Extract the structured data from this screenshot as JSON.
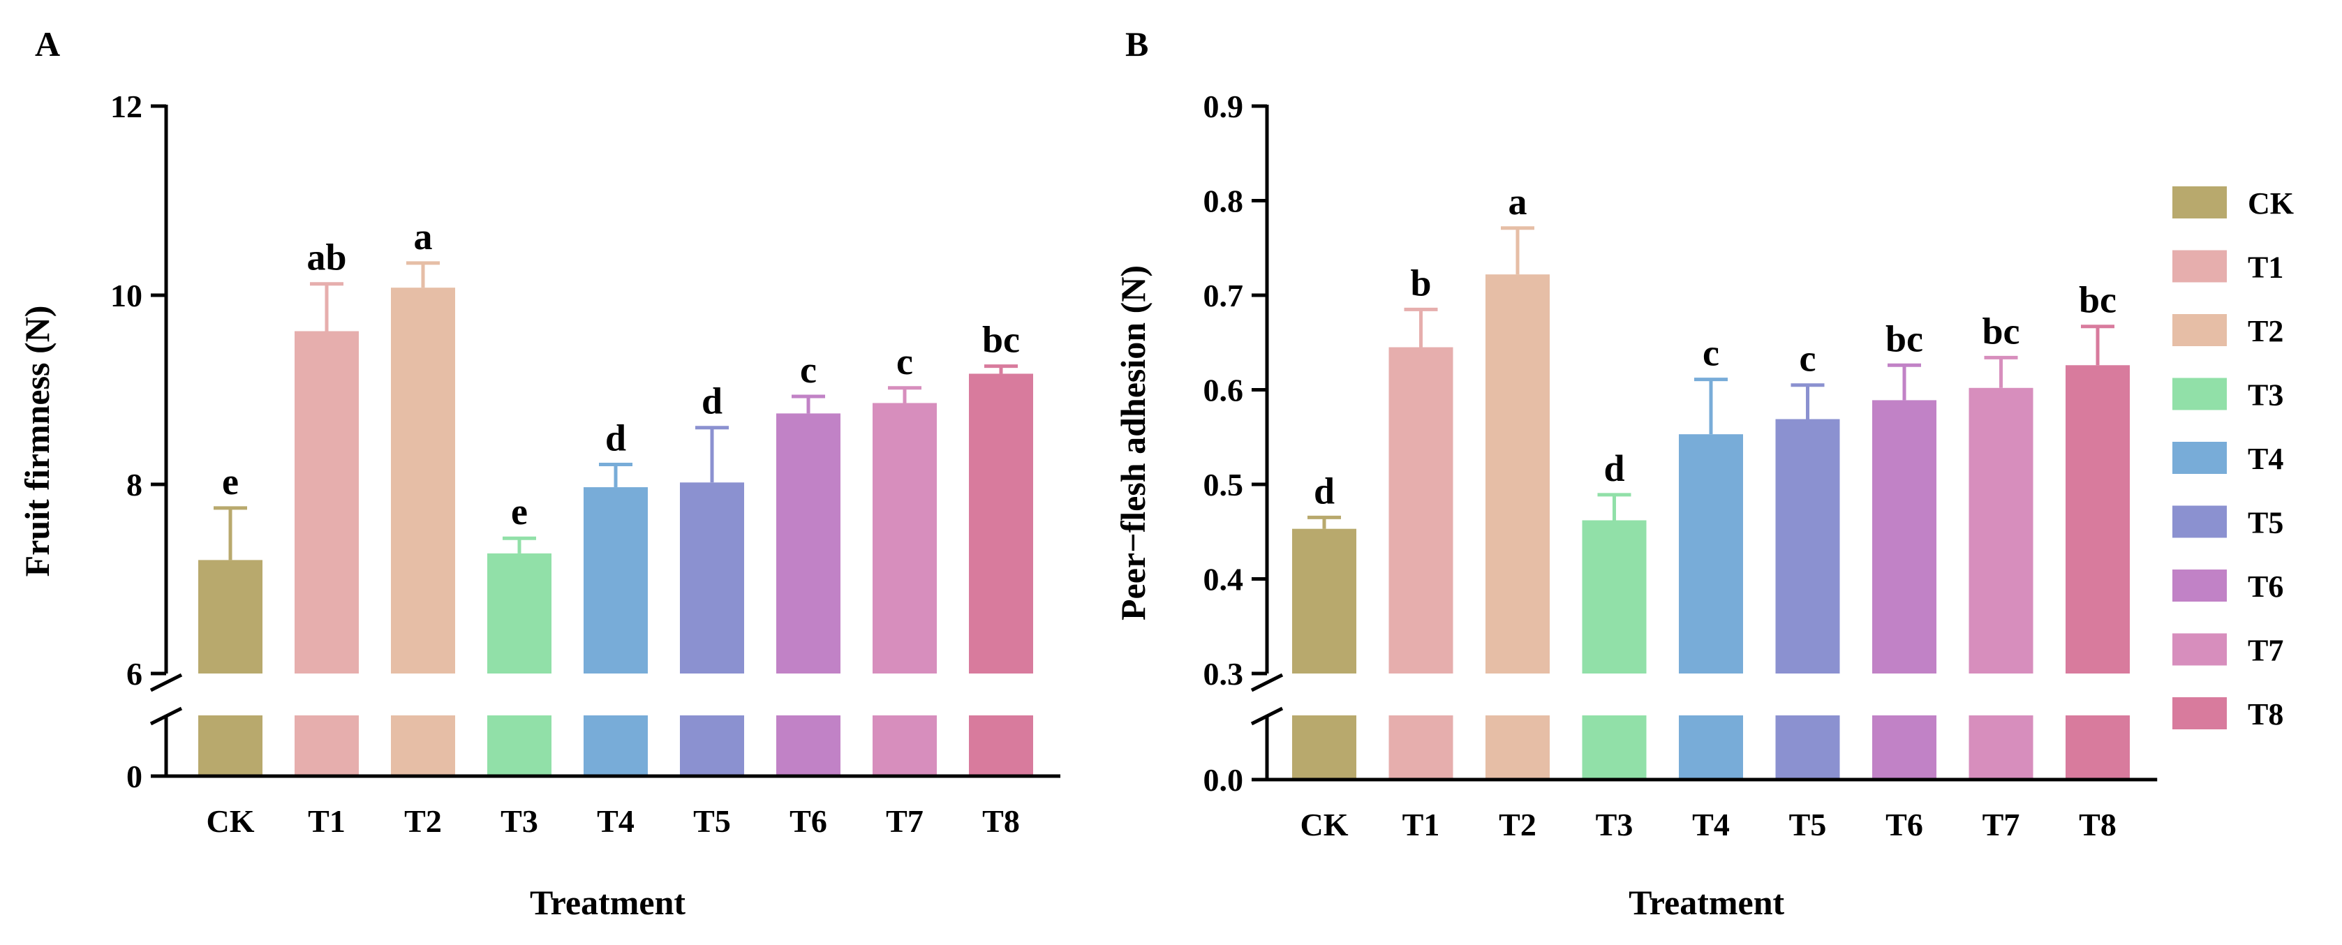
{
  "colors": {
    "CK": "#b8a96d",
    "T1": "#e6aead",
    "T2": "#e6bea6",
    "T3": "#91e0a8",
    "T4": "#78acd8",
    "T5": "#8b91d0",
    "T6": "#c182c6",
    "T7": "#d78ebd",
    "T8": "#d87b9d"
  },
  "chart_data": [
    {
      "type": "bar",
      "panel_label": "A",
      "categories": [
        "CK",
        "T1",
        "T2",
        "T3",
        "T4",
        "T5",
        "T6",
        "T7",
        "T8"
      ],
      "values": [
        7.2,
        9.62,
        10.08,
        7.27,
        7.97,
        8.02,
        8.75,
        8.86,
        9.17
      ],
      "errors": [
        0.55,
        0.5,
        0.26,
        0.16,
        0.24,
        0.58,
        0.18,
        0.16,
        0.08
      ],
      "significance": [
        "e",
        "ab",
        "a",
        "e",
        "d",
        "d",
        "c",
        "c",
        "bc"
      ],
      "xlabel": "Treatment",
      "ylabel": "Fruit firmness (N)",
      "ylim_upper": [
        6,
        12
      ],
      "ylim_lower": [
        0,
        6
      ],
      "yticks_upper": [
        "12",
        "10",
        "8",
        "6"
      ],
      "yticks_lower": [
        "0"
      ],
      "axis_break": true
    },
    {
      "type": "bar",
      "panel_label": "B",
      "categories": [
        "CK",
        "T1",
        "T2",
        "T3",
        "T4",
        "T5",
        "T6",
        "T7",
        "T8"
      ],
      "values": [
        0.453,
        0.645,
        0.722,
        0.462,
        0.553,
        0.569,
        0.589,
        0.602,
        0.626
      ],
      "errors": [
        0.012,
        0.04,
        0.049,
        0.027,
        0.058,
        0.036,
        0.037,
        0.032,
        0.041
      ],
      "significance": [
        "d",
        "b",
        "a",
        "d",
        "c",
        "c",
        "bc",
        "bc",
        "bc"
      ],
      "xlabel": "Treatment",
      "ylabel": "Peer−flesh adhesion (N)",
      "ylim_upper": [
        0.3,
        0.9
      ],
      "ylim_lower": [
        0.0,
        0.3
      ],
      "yticks_upper": [
        "0.9",
        "0.8",
        "0.7",
        "0.6",
        "0.5",
        "0.4",
        "0.3"
      ],
      "yticks_lower": [
        "0.0"
      ],
      "axis_break": true,
      "legend": [
        "CK",
        "T1",
        "T2",
        "T3",
        "T4",
        "T5",
        "T6",
        "T7",
        "T8"
      ],
      "legend_position": "right"
    }
  ]
}
